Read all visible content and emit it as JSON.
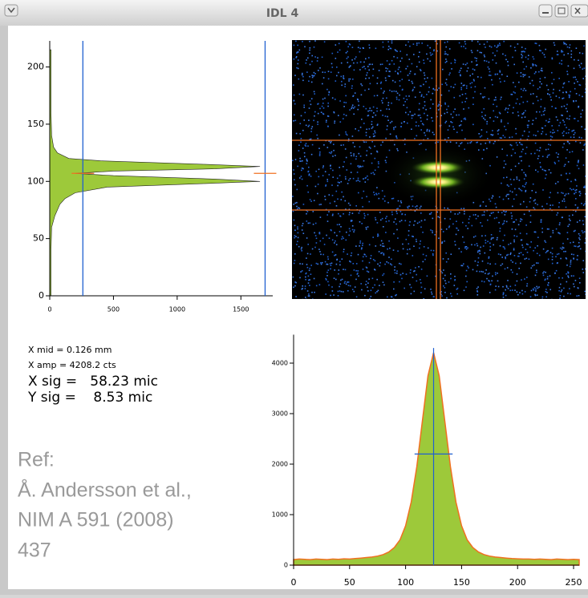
{
  "window": {
    "title": "IDL 4"
  },
  "readouts": [
    "X mid =  0.126 mm",
    "X amp =  4208.2 cts",
    "X sig =   58.23 mic",
    "Y sig =    8.53 mic"
  ],
  "reference": [
    "Ref:",
    "Å. Andersson et al.,",
    "NIM A 591 (2008)",
    "437"
  ],
  "chart_data": [
    {
      "type": "area",
      "orientation": "horizontal",
      "color": "#9dc93a",
      "y": [
        0,
        20,
        40,
        60,
        70,
        80,
        85,
        90,
        95,
        98,
        100,
        102,
        105,
        107,
        109,
        111,
        113,
        115,
        118,
        120,
        125,
        130,
        140,
        160,
        180,
        200,
        215
      ],
      "values": [
        10,
        10,
        10,
        15,
        40,
        80,
        120,
        200,
        450,
        1200,
        1650,
        1300,
        500,
        200,
        500,
        1300,
        1650,
        1200,
        400,
        150,
        60,
        30,
        15,
        10,
        10,
        10,
        10
      ],
      "xlim": [
        0,
        1750
      ],
      "xticks": [
        0,
        500,
        1000,
        1500
      ],
      "ylim": [
        0,
        220
      ],
      "yticks": [
        0,
        50,
        100,
        150,
        200
      ],
      "marker_lines": [
        260,
        1690
      ],
      "marker_level": 107
    },
    {
      "type": "area",
      "orientation": "vertical",
      "color": "#9dc93a",
      "fit_color": "#f07020",
      "x": [
        0,
        5,
        10,
        15,
        20,
        25,
        30,
        35,
        40,
        45,
        50,
        55,
        60,
        65,
        70,
        75,
        80,
        85,
        90,
        95,
        100,
        105,
        110,
        115,
        120,
        125,
        130,
        135,
        140,
        145,
        150,
        155,
        160,
        165,
        170,
        175,
        180,
        185,
        190,
        195,
        200,
        205,
        210,
        215,
        220,
        225,
        230,
        235,
        240,
        245,
        250,
        255
      ],
      "values": [
        110,
        120,
        115,
        110,
        120,
        115,
        110,
        120,
        115,
        125,
        120,
        130,
        140,
        150,
        160,
        180,
        210,
        260,
        350,
        500,
        780,
        1250,
        1950,
        2850,
        3750,
        4208,
        3750,
        2850,
        1950,
        1250,
        780,
        500,
        350,
        260,
        210,
        180,
        160,
        150,
        140,
        130,
        125,
        120,
        120,
        115,
        120,
        115,
        110,
        120,
        115,
        110,
        115,
        110
      ],
      "xlim": [
        0,
        255
      ],
      "xticks": [
        0,
        50,
        100,
        150,
        200,
        250
      ],
      "ylim": [
        0,
        4500
      ],
      "yticks": [
        0,
        1000,
        2000,
        3000,
        4000
      ],
      "center_line": {
        "x": 125,
        "top": 4300
      },
      "half_line": {
        "y": 2200,
        "x": [
          108,
          142
        ]
      }
    }
  ]
}
